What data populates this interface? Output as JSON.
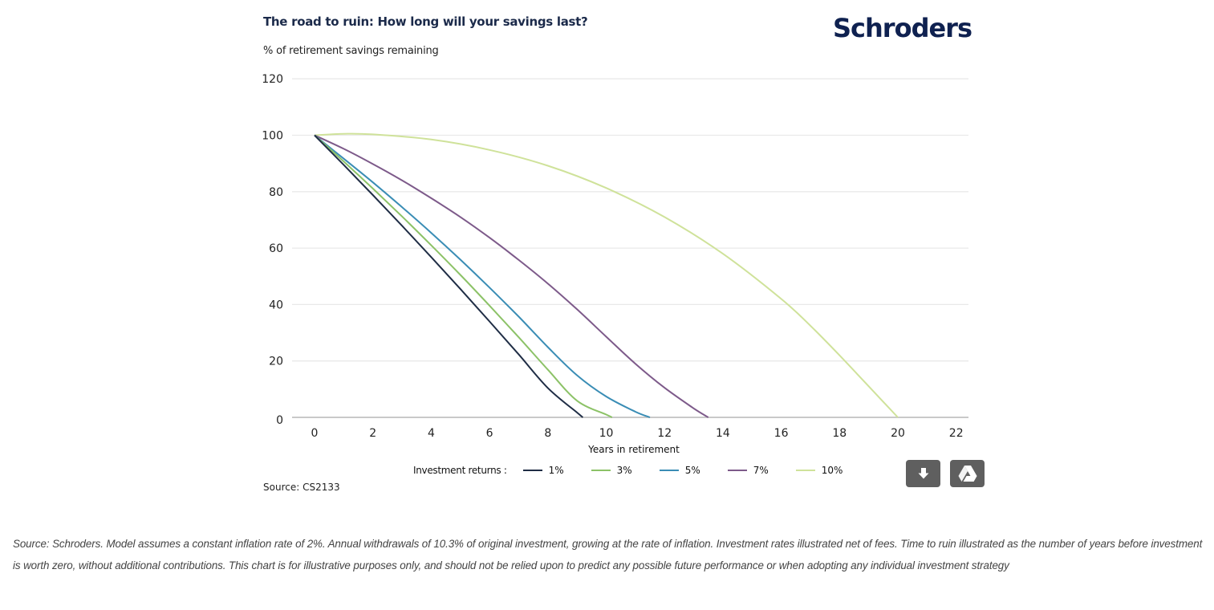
{
  "header": {
    "title": "The road to ruin: How long will your savings last?",
    "y_axis_caption": "% of retirement savings remaining",
    "brand": "Schroders"
  },
  "legend": {
    "title": "Investment returns :"
  },
  "source_label": "Source: CS2133",
  "buttons": {
    "download_icon": "download-icon",
    "drive_icon": "google-drive-icon"
  },
  "footnote": "Source: Schroders. Model assumes a constant inflation rate of 2%. Annual withdrawals of 10.3% of original investment, growing at the rate of inflation. Investment rates illustrated net of fees. Time to ruin illustrated as the number of years before investment is worth zero, without additional contributions. This chart is for illustrative purposes only, and should not be relied upon to predict any possible future performance or when adopting any individual investment strategy",
  "chart_data": {
    "type": "line",
    "title": "The road to ruin: How long will your savings last?",
    "xlabel": "Years in retirement",
    "ylabel": "% of retirement savings remaining",
    "xlim": [
      -0.8,
      22.5
    ],
    "ylim": [
      0,
      120
    ],
    "xticks": [
      0,
      2,
      4,
      6,
      8,
      10,
      12,
      14,
      16,
      18,
      20,
      22
    ],
    "yticks": [
      0,
      20,
      40,
      60,
      80,
      100,
      120
    ],
    "grid": true,
    "legend_position": "bottom",
    "series": [
      {
        "name": "1%",
        "color": "#1f2d45",
        "x": [
          0,
          1,
          2,
          3,
          4,
          5,
          6,
          7,
          8,
          9,
          9.2
        ],
        "y": [
          100,
          89.5,
          78.8,
          67.9,
          56.8,
          45.5,
          34.0,
          22.3,
          10.4,
          1.7,
          0
        ]
      },
      {
        "name": "3%",
        "color": "#8cc267",
        "x": [
          0,
          1,
          2,
          3,
          4,
          5,
          6,
          7,
          8,
          9,
          10,
          10.2
        ],
        "y": [
          100,
          90.7,
          81.1,
          71.2,
          61.0,
          50.5,
          39.6,
          28.4,
          16.9,
          5.9,
          1.0,
          0
        ]
      },
      {
        "name": "5%",
        "color": "#3a8db5",
        "x": [
          0,
          1,
          2,
          3,
          4,
          5,
          6,
          7,
          8,
          9,
          10,
          11,
          11.5
        ],
        "y": [
          100,
          91.7,
          83.3,
          74.5,
          65.4,
          55.9,
          46.0,
          35.7,
          24.9,
          14.9,
          7.4,
          2.0,
          0
        ]
      },
      {
        "name": "7%",
        "color": "#7d5a8a",
        "x": [
          0,
          1,
          2,
          3,
          4,
          5,
          6,
          7,
          8,
          9,
          10,
          11,
          12,
          13,
          13.5
        ],
        "y": [
          100,
          95.2,
          89.8,
          84.0,
          77.7,
          71.0,
          63.7,
          55.8,
          47.4,
          38.3,
          28.6,
          19.0,
          10.5,
          3.2,
          0
        ]
      },
      {
        "name": "10%",
        "color": "#cfe29a",
        "x": [
          0,
          1,
          2,
          4,
          6,
          8,
          10,
          12,
          14,
          16,
          17,
          18,
          19,
          20
        ],
        "y": [
          100,
          100.5,
          100.3,
          98.5,
          94.8,
          89.2,
          81.3,
          71.0,
          58.0,
          42.0,
          32.5,
          22.0,
          11.0,
          0
        ]
      }
    ]
  }
}
